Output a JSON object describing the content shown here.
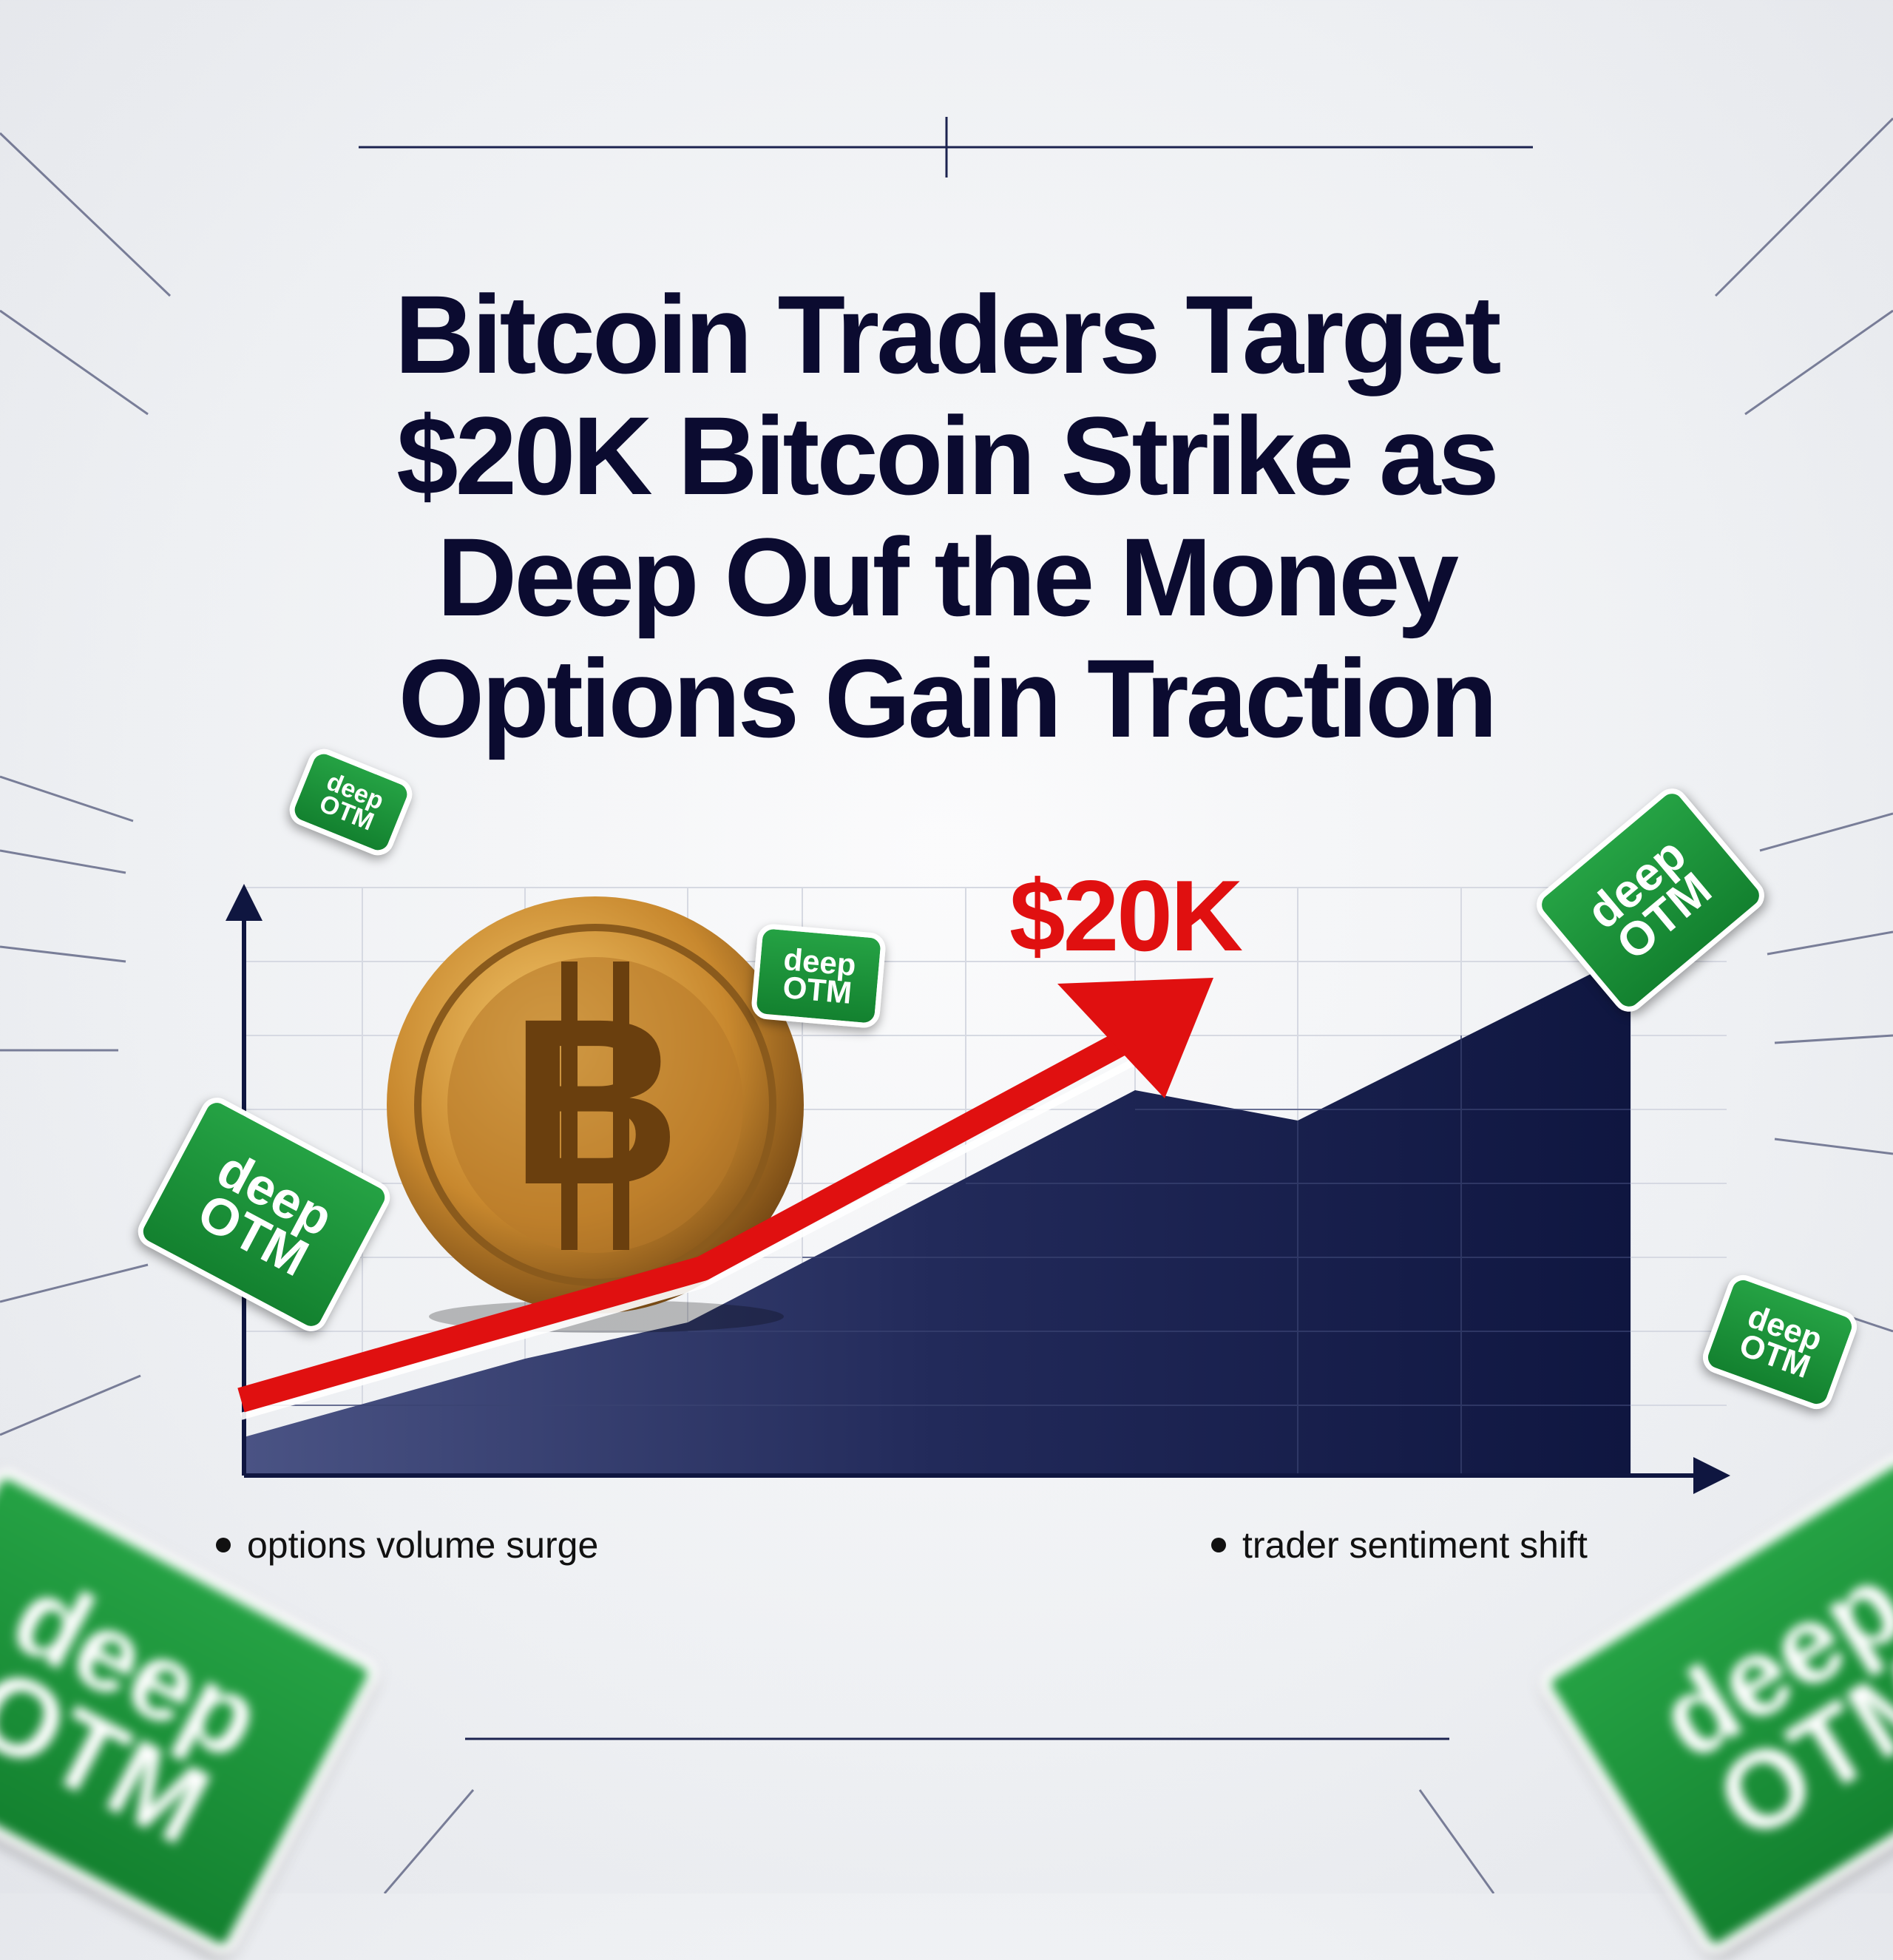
{
  "headline": {
    "lines": [
      "Bitcoin Traders Target",
      "$20K Bitcoin Strike as",
      "Deep Ouf the Money",
      "Options Gain Traction"
    ]
  },
  "chart": {
    "target_label": "$20K",
    "arrow_color": "#e01010",
    "area_color": "#1a2250",
    "legend": [
      "options volume surge",
      "trader sentiment shift"
    ]
  },
  "badge": {
    "line1": "deep",
    "line2": "OTM",
    "color": "#1a9a3c"
  },
  "coin": {
    "symbol": "B",
    "icon": "bitcoin-coin-icon"
  }
}
